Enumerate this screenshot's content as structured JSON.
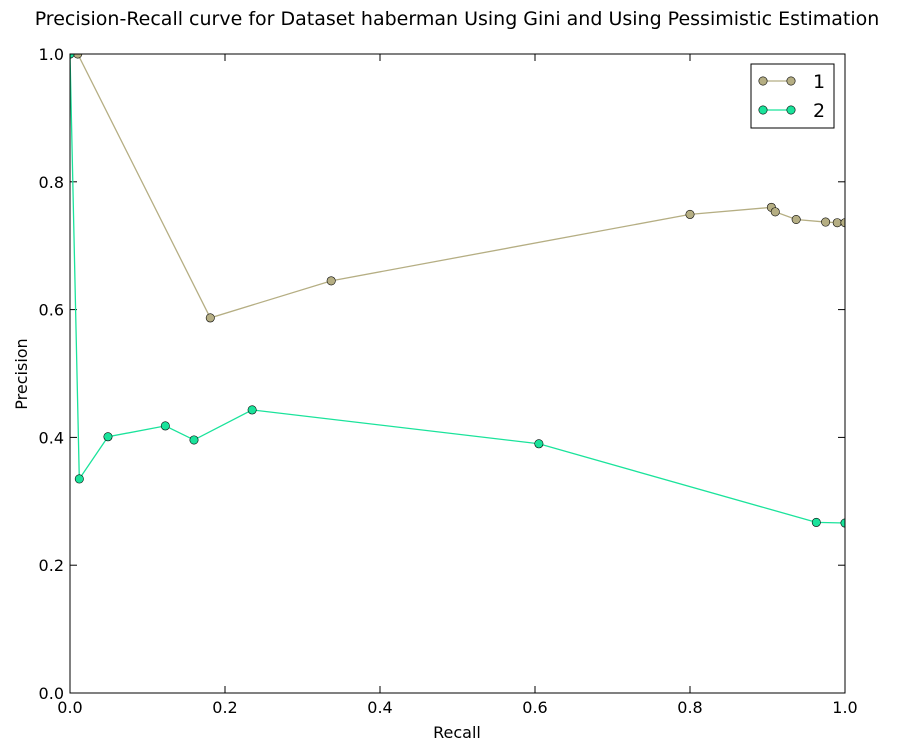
{
  "chart_data": {
    "type": "line",
    "title": "Precision-Recall curve for Dataset haberman Using Gini and Using Pessimistic Estimation",
    "xlabel": "Recall",
    "ylabel": "Precision",
    "xlim": [
      0.0,
      1.0
    ],
    "ylim": [
      0.0,
      1.0
    ],
    "xticks": [
      "0.0",
      "0.2",
      "0.4",
      "0.6",
      "0.8",
      "1.0"
    ],
    "yticks": [
      "0.0",
      "0.2",
      "0.4",
      "0.6",
      "0.8",
      "1.0"
    ],
    "grid": false,
    "legend_position": "top-right",
    "series": [
      {
        "name": "1",
        "color": "#b5ae83",
        "x": [
          0.0,
          0.01,
          0.181,
          0.337,
          0.8,
          0.905,
          0.91,
          0.937,
          0.975,
          0.99,
          1.0
        ],
        "y": [
          1.0,
          1.0,
          0.587,
          0.645,
          0.749,
          0.76,
          0.753,
          0.741,
          0.737,
          0.736,
          0.736
        ]
      },
      {
        "name": "2",
        "color": "#1ae39b",
        "x": [
          0.0,
          0.012,
          0.049,
          0.123,
          0.16,
          0.235,
          0.605,
          0.963,
          1.0
        ],
        "y": [
          1.0,
          0.335,
          0.401,
          0.418,
          0.396,
          0.443,
          0.39,
          0.267,
          0.266
        ]
      }
    ]
  }
}
